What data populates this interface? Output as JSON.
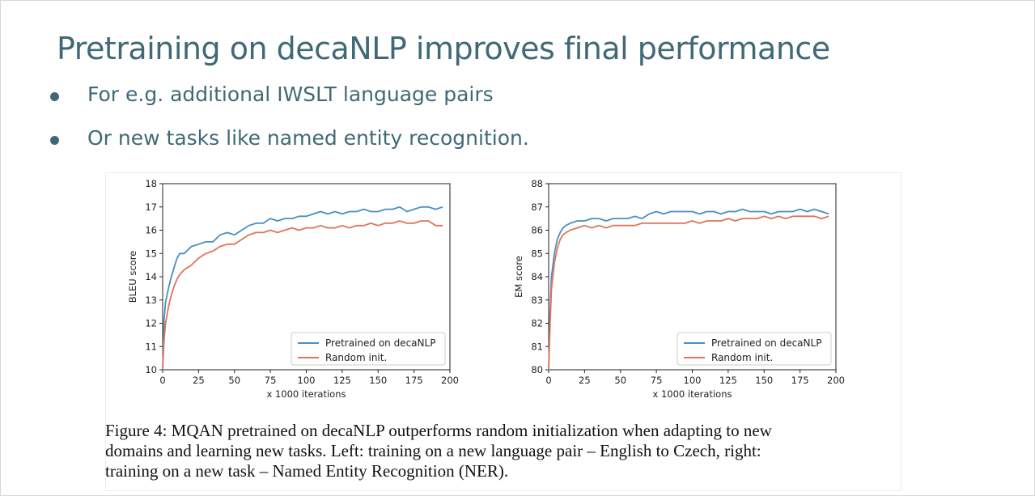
{
  "slide": {
    "title": "Pretraining on decaNLP improves final performance",
    "bullets": [
      "For e.g. additional IWSLT language pairs",
      "Or new tasks like named entity recognition."
    ]
  },
  "figure": {
    "caption": "Figure 4: MQAN pretrained on decaNLP outperforms random initialization when adapting to new\ndomains and learning new tasks. Left: training on a new language pair – English to Czech, right:\ntraining on a new task – Named Entity Recognition (NER)."
  },
  "colors": {
    "pretrained": "#4a8fc0",
    "random": "#e0735a",
    "title": "#3f6977"
  },
  "chart_data": [
    {
      "type": "line",
      "xlabel": "x 1000 iterations",
      "ylabel": "BLEU score",
      "xlim": [
        0,
        200
      ],
      "ylim": [
        10,
        18
      ],
      "xticks": [
        0,
        25,
        50,
        75,
        100,
        125,
        150,
        175,
        200
      ],
      "yticks": [
        10,
        11,
        12,
        13,
        14,
        15,
        16,
        17,
        18
      ],
      "legend": "lower-right",
      "series": [
        {
          "name": "Pretrained on decaNLP",
          "color": "#4a8fc0",
          "x": [
            0,
            1,
            2,
            4,
            6,
            8,
            10,
            12,
            15,
            20,
            25,
            30,
            35,
            40,
            45,
            50,
            55,
            60,
            65,
            70,
            75,
            80,
            85,
            90,
            95,
            100,
            105,
            110,
            115,
            120,
            125,
            130,
            135,
            140,
            145,
            150,
            155,
            160,
            165,
            170,
            175,
            180,
            185,
            190,
            195
          ],
          "y": [
            10.0,
            12.2,
            12.9,
            13.5,
            14.0,
            14.4,
            14.8,
            15.0,
            15.0,
            15.3,
            15.4,
            15.5,
            15.5,
            15.8,
            15.9,
            15.8,
            16.0,
            16.2,
            16.3,
            16.3,
            16.5,
            16.4,
            16.5,
            16.5,
            16.6,
            16.6,
            16.7,
            16.8,
            16.7,
            16.8,
            16.7,
            16.8,
            16.8,
            16.9,
            16.8,
            16.8,
            16.9,
            16.9,
            17.0,
            16.8,
            16.9,
            17.0,
            17.0,
            16.9,
            17.0
          ]
        },
        {
          "name": "Random init.",
          "color": "#e0735a",
          "x": [
            0,
            1,
            2,
            4,
            6,
            8,
            10,
            12,
            15,
            20,
            25,
            30,
            35,
            40,
            45,
            50,
            55,
            60,
            65,
            70,
            75,
            80,
            85,
            90,
            95,
            100,
            105,
            110,
            115,
            120,
            125,
            130,
            135,
            140,
            145,
            150,
            155,
            160,
            165,
            170,
            175,
            180,
            185,
            190,
            195
          ],
          "y": [
            10.0,
            11.3,
            12.0,
            12.7,
            13.2,
            13.6,
            13.9,
            14.1,
            14.3,
            14.5,
            14.8,
            15.0,
            15.1,
            15.3,
            15.4,
            15.4,
            15.6,
            15.8,
            15.9,
            15.9,
            16.0,
            15.9,
            16.0,
            16.1,
            16.0,
            16.1,
            16.1,
            16.2,
            16.1,
            16.1,
            16.2,
            16.1,
            16.2,
            16.2,
            16.3,
            16.2,
            16.3,
            16.3,
            16.4,
            16.3,
            16.3,
            16.4,
            16.4,
            16.2,
            16.2
          ]
        }
      ]
    },
    {
      "type": "line",
      "xlabel": "x 1000 iterations",
      "ylabel": "EM score",
      "xlim": [
        0,
        200
      ],
      "ylim": [
        80,
        88
      ],
      "xticks": [
        0,
        25,
        50,
        75,
        100,
        125,
        150,
        175,
        200
      ],
      "yticks": [
        80,
        81,
        82,
        83,
        84,
        85,
        86,
        87,
        88
      ],
      "legend": "lower-right",
      "series": [
        {
          "name": "Pretrained on decaNLP",
          "color": "#4a8fc0",
          "x": [
            0,
            1,
            2,
            4,
            6,
            8,
            10,
            12,
            15,
            20,
            25,
            30,
            35,
            40,
            45,
            50,
            55,
            60,
            65,
            70,
            75,
            80,
            85,
            90,
            95,
            100,
            105,
            110,
            115,
            120,
            125,
            130,
            135,
            140,
            145,
            150,
            155,
            160,
            165,
            170,
            175,
            180,
            185,
            190,
            195
          ],
          "y": [
            80.0,
            82.5,
            84.0,
            85.0,
            85.6,
            85.9,
            86.1,
            86.2,
            86.3,
            86.4,
            86.4,
            86.5,
            86.5,
            86.4,
            86.5,
            86.5,
            86.5,
            86.6,
            86.5,
            86.7,
            86.8,
            86.7,
            86.8,
            86.8,
            86.8,
            86.8,
            86.7,
            86.8,
            86.8,
            86.7,
            86.8,
            86.8,
            86.9,
            86.8,
            86.8,
            86.8,
            86.7,
            86.8,
            86.8,
            86.8,
            86.9,
            86.8,
            86.9,
            86.8,
            86.7
          ]
        },
        {
          "name": "Random init.",
          "color": "#e0735a",
          "x": [
            0,
            1,
            2,
            4,
            6,
            8,
            10,
            12,
            15,
            20,
            25,
            30,
            35,
            40,
            45,
            50,
            55,
            60,
            65,
            70,
            75,
            80,
            85,
            90,
            95,
            100,
            105,
            110,
            115,
            120,
            125,
            130,
            135,
            140,
            145,
            150,
            155,
            160,
            165,
            170,
            175,
            180,
            185,
            190,
            195
          ],
          "y": [
            80.0,
            82.0,
            83.5,
            84.6,
            85.2,
            85.6,
            85.8,
            85.9,
            86.0,
            86.1,
            86.2,
            86.1,
            86.2,
            86.1,
            86.2,
            86.2,
            86.2,
            86.2,
            86.3,
            86.3,
            86.3,
            86.3,
            86.3,
            86.3,
            86.3,
            86.4,
            86.3,
            86.4,
            86.4,
            86.4,
            86.5,
            86.4,
            86.5,
            86.5,
            86.5,
            86.6,
            86.5,
            86.6,
            86.5,
            86.6,
            86.6,
            86.6,
            86.6,
            86.5,
            86.6
          ]
        }
      ]
    }
  ]
}
